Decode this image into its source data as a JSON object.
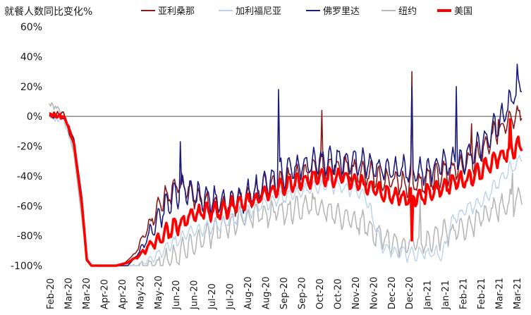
{
  "chart_data": {
    "type": "line",
    "title": "",
    "ylabel": "就餐人数同比变化%",
    "ylim": [
      -100,
      60
    ],
    "y_ticks": [
      "60%",
      "40%",
      "20%",
      "0%",
      "-20%",
      "-40%",
      "-60%",
      "-80%",
      "-100%"
    ],
    "y_tick_values": [
      60,
      40,
      20,
      0,
      -20,
      -40,
      -60,
      -80,
      -100
    ],
    "x_ticks": [
      "Feb-20",
      "Mar-20",
      "Mar-20",
      "Apr-20",
      "Apr-20",
      "May-20",
      "May-20",
      "Jun-20",
      "Jun-20",
      "Jul-20",
      "Jul-20",
      "Aug-20",
      "Aug-20",
      "Sep-20",
      "Sep-20",
      "Oct-20",
      "Oct-20",
      "Nov-20",
      "Nov-20",
      "Dec-20",
      "Dec-20",
      "Jan-21",
      "Jan-21",
      "Feb-21",
      "Feb-21",
      "Mar-21",
      "Mar-21"
    ],
    "x_range": [
      "2020-02-18",
      "2021-03-28"
    ],
    "grid": false,
    "legend_position": "top",
    "series": [
      {
        "name": "亚利桑那",
        "color": "#8b1a1a",
        "anchors": [
          [
            "2020-02-18",
            3
          ],
          [
            "2020-03-01",
            2
          ],
          [
            "2020-03-10",
            -20
          ],
          [
            "2020-03-17",
            -60
          ],
          [
            "2020-03-21",
            -97
          ],
          [
            "2020-03-25",
            -100
          ],
          [
            "2020-04-20",
            -100
          ],
          [
            "2020-05-01",
            -92
          ],
          [
            "2020-05-10",
            -78
          ],
          [
            "2020-05-20",
            -62
          ],
          [
            "2020-06-01",
            -50
          ],
          [
            "2020-06-10",
            -46
          ],
          [
            "2020-06-20",
            -52
          ],
          [
            "2020-07-01",
            -60
          ],
          [
            "2020-07-10",
            -62
          ],
          [
            "2020-07-20",
            -60
          ],
          [
            "2020-08-01",
            -55
          ],
          [
            "2020-08-15",
            -50
          ],
          [
            "2020-09-01",
            -45
          ],
          [
            "2020-09-15",
            -42
          ],
          [
            "2020-10-01",
            -36
          ],
          [
            "2020-10-15",
            -33
          ],
          [
            "2020-11-01",
            -35
          ],
          [
            "2020-11-15",
            -38
          ],
          [
            "2020-12-01",
            -42
          ],
          [
            "2020-12-15",
            -45
          ],
          [
            "2021-01-01",
            -45
          ],
          [
            "2021-01-15",
            -40
          ],
          [
            "2021-02-01",
            -35
          ],
          [
            "2021-02-15",
            -30
          ],
          [
            "2021-03-01",
            -15
          ],
          [
            "2021-03-15",
            -6
          ],
          [
            "2021-03-28",
            2
          ]
        ],
        "spikes": [
          [
            "2020-10-08",
            4
          ],
          [
            "2020-12-24",
            30
          ],
          [
            "2021-02-13",
            -5
          ],
          [
            "2021-03-08",
            -2
          ]
        ]
      },
      {
        "name": "加利福尼亚",
        "color": "#bcd2ea",
        "anchors": [
          [
            "2020-02-18",
            -1
          ],
          [
            "2020-03-01",
            -2
          ],
          [
            "2020-03-10",
            -22
          ],
          [
            "2020-03-17",
            -60
          ],
          [
            "2020-03-21",
            -97
          ],
          [
            "2020-03-25",
            -100
          ],
          [
            "2020-05-01",
            -100
          ],
          [
            "2020-05-15",
            -96
          ],
          [
            "2020-06-01",
            -86
          ],
          [
            "2020-06-15",
            -78
          ],
          [
            "2020-07-01",
            -74
          ],
          [
            "2020-07-15",
            -72
          ],
          [
            "2020-08-01",
            -66
          ],
          [
            "2020-08-15",
            -60
          ],
          [
            "2020-09-01",
            -55
          ],
          [
            "2020-09-15",
            -52
          ],
          [
            "2020-10-01",
            -48
          ],
          [
            "2020-10-15",
            -46
          ],
          [
            "2020-11-01",
            -48
          ],
          [
            "2020-11-15",
            -55
          ],
          [
            "2020-11-28",
            -88
          ],
          [
            "2020-12-15",
            -92
          ],
          [
            "2021-01-01",
            -92
          ],
          [
            "2021-01-20",
            -92
          ],
          [
            "2021-01-27",
            -70
          ],
          [
            "2021-02-10",
            -62
          ],
          [
            "2021-02-25",
            -55
          ],
          [
            "2021-03-10",
            -42
          ],
          [
            "2021-03-28",
            -28
          ]
        ],
        "spikes": []
      },
      {
        "name": "佛罗里达",
        "color": "#1c1c7a",
        "anchors": [
          [
            "2020-02-18",
            0
          ],
          [
            "2020-03-01",
            0
          ],
          [
            "2020-03-10",
            -15
          ],
          [
            "2020-03-17",
            -55
          ],
          [
            "2020-03-21",
            -96
          ],
          [
            "2020-03-25",
            -100
          ],
          [
            "2020-04-25",
            -100
          ],
          [
            "2020-05-01",
            -95
          ],
          [
            "2020-05-10",
            -84
          ],
          [
            "2020-05-20",
            -70
          ],
          [
            "2020-06-01",
            -55
          ],
          [
            "2020-06-10",
            -48
          ],
          [
            "2020-06-20",
            -52
          ],
          [
            "2020-07-01",
            -55
          ],
          [
            "2020-07-15",
            -58
          ],
          [
            "2020-08-01",
            -55
          ],
          [
            "2020-08-15",
            -50
          ],
          [
            "2020-09-01",
            -40
          ],
          [
            "2020-09-15",
            -36
          ],
          [
            "2020-10-01",
            -32
          ],
          [
            "2020-10-15",
            -30
          ],
          [
            "2020-11-01",
            -30
          ],
          [
            "2020-11-15",
            -32
          ],
          [
            "2020-12-01",
            -35
          ],
          [
            "2020-12-15",
            -36
          ],
          [
            "2021-01-01",
            -37
          ],
          [
            "2021-01-15",
            -33
          ],
          [
            "2021-02-01",
            -30
          ],
          [
            "2021-02-15",
            -24
          ],
          [
            "2021-03-01",
            -12
          ],
          [
            "2021-03-15",
            5
          ],
          [
            "2021-03-28",
            22
          ]
        ],
        "spikes": [
          [
            "2020-06-09",
            -17
          ],
          [
            "2020-09-01",
            18
          ],
          [
            "2020-12-24",
            20
          ],
          [
            "2021-01-31",
            20
          ],
          [
            "2021-03-24",
            35
          ]
        ]
      },
      {
        "name": "纽约",
        "color": "#b8b8b8",
        "anchors": [
          [
            "2020-02-18",
            8
          ],
          [
            "2020-03-01",
            3
          ],
          [
            "2020-03-10",
            -25
          ],
          [
            "2020-03-17",
            -70
          ],
          [
            "2020-03-21",
            -97
          ],
          [
            "2020-03-25",
            -100
          ],
          [
            "2020-05-20",
            -100
          ],
          [
            "2020-06-01",
            -95
          ],
          [
            "2020-06-15",
            -88
          ],
          [
            "2020-07-01",
            -80
          ],
          [
            "2020-07-15",
            -75
          ],
          [
            "2020-08-01",
            -68
          ],
          [
            "2020-08-15",
            -66
          ],
          [
            "2020-09-01",
            -64
          ],
          [
            "2020-09-15",
            -62
          ],
          [
            "2020-10-01",
            -60
          ],
          [
            "2020-10-15",
            -63
          ],
          [
            "2020-11-01",
            -68
          ],
          [
            "2020-11-15",
            -74
          ],
          [
            "2020-12-01",
            -82
          ],
          [
            "2020-12-15",
            -86
          ],
          [
            "2021-01-01",
            -86
          ],
          [
            "2021-01-15",
            -80
          ],
          [
            "2021-02-01",
            -76
          ],
          [
            "2021-02-15",
            -72
          ],
          [
            "2021-03-01",
            -64
          ],
          [
            "2021-03-15",
            -60
          ],
          [
            "2021-03-28",
            -54
          ]
        ],
        "spikes": [
          [
            "2020-12-31",
            -55
          ],
          [
            "2021-03-20",
            -38
          ]
        ]
      },
      {
        "name": "美国",
        "color": "#ff0000",
        "anchors": [
          [
            "2020-02-18",
            1
          ],
          [
            "2020-03-01",
            0
          ],
          [
            "2020-03-10",
            -18
          ],
          [
            "2020-03-17",
            -60
          ],
          [
            "2020-03-21",
            -96
          ],
          [
            "2020-03-25",
            -100
          ],
          [
            "2020-04-15",
            -100
          ],
          [
            "2020-04-25",
            -98
          ],
          [
            "2020-05-05",
            -93
          ],
          [
            "2020-05-15",
            -86
          ],
          [
            "2020-06-01",
            -76
          ],
          [
            "2020-06-15",
            -68
          ],
          [
            "2020-07-01",
            -63
          ],
          [
            "2020-07-15",
            -63
          ],
          [
            "2020-08-01",
            -58
          ],
          [
            "2020-08-15",
            -55
          ],
          [
            "2020-09-01",
            -48
          ],
          [
            "2020-09-15",
            -44
          ],
          [
            "2020-10-01",
            -42
          ],
          [
            "2020-10-15",
            -40
          ],
          [
            "2020-11-01",
            -42
          ],
          [
            "2020-11-15",
            -46
          ],
          [
            "2020-12-01",
            -52
          ],
          [
            "2020-12-15",
            -55
          ],
          [
            "2021-01-01",
            -54
          ],
          [
            "2021-01-15",
            -48
          ],
          [
            "2021-02-01",
            -44
          ],
          [
            "2021-02-15",
            -40
          ],
          [
            "2021-03-01",
            -32
          ],
          [
            "2021-03-15",
            -24
          ],
          [
            "2021-03-28",
            -19
          ]
        ],
        "spikes": [
          [
            "2020-12-24",
            -83
          ],
          [
            "2021-03-18",
            -2
          ]
        ]
      }
    ]
  }
}
